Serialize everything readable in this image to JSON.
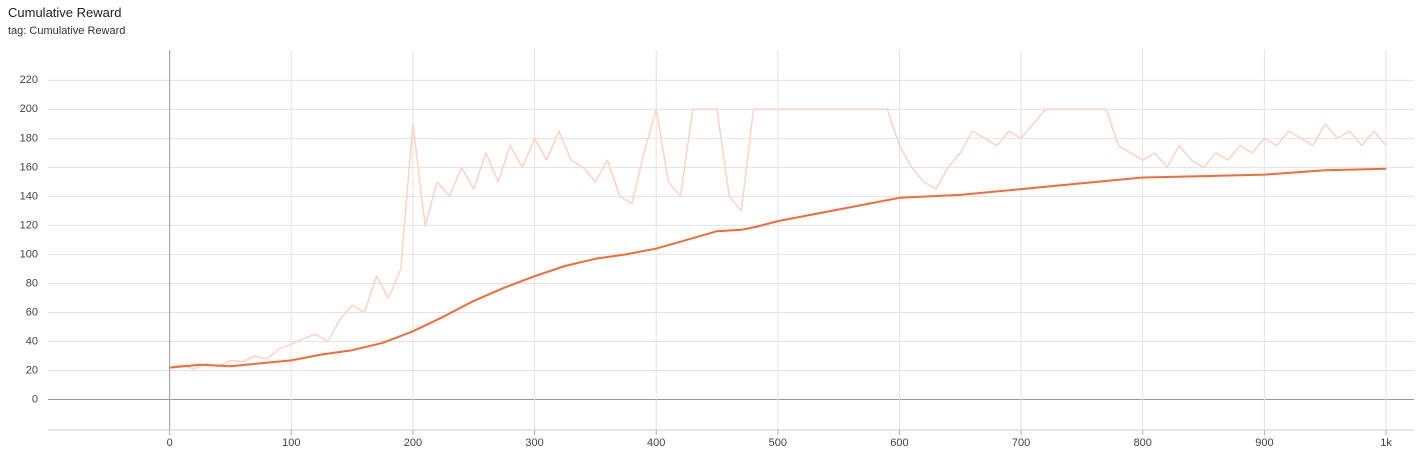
{
  "chart_data": {
    "type": "line",
    "title": "Cumulative Reward",
    "subtitle": "tag: Cumulative Reward",
    "xlim": [
      -100,
      1023
    ],
    "ylim": [
      -21,
      234
    ],
    "xticks": [
      0,
      100,
      200,
      300,
      400,
      500,
      600,
      700,
      800,
      900,
      {
        "value": 1000,
        "label": "1k"
      }
    ],
    "yticks": [
      0,
      20,
      40,
      60,
      80,
      100,
      120,
      140,
      160,
      180,
      200,
      220
    ],
    "grid": true,
    "series": [
      {
        "color": "#fbd3c4",
        "x": [
          0,
          10,
          20,
          30,
          40,
          50,
          60,
          70,
          80,
          90,
          100,
          110,
          120,
          130,
          140,
          150,
          160,
          170,
          180,
          190,
          200,
          210,
          220,
          230,
          240,
          250,
          260,
          270,
          280,
          290,
          300,
          310,
          320,
          330,
          340,
          350,
          360,
          370,
          380,
          390,
          400,
          410,
          420,
          430,
          440,
          450,
          460,
          470,
          480,
          490,
          500,
          510,
          520,
          530,
          540,
          550,
          560,
          570,
          580,
          590,
          600,
          610,
          620,
          630,
          640,
          650,
          660,
          670,
          680,
          690,
          700,
          710,
          720,
          730,
          740,
          750,
          760,
          770,
          780,
          790,
          800,
          810,
          820,
          830,
          840,
          850,
          860,
          870,
          880,
          890,
          900,
          910,
          920,
          930,
          940,
          950,
          960,
          970,
          980,
          990,
          1000
        ],
        "values": [
          22,
          24,
          21,
          25,
          23,
          27,
          26,
          30,
          28,
          35,
          38,
          42,
          45,
          40,
          55,
          65,
          60,
          85,
          70,
          90,
          190,
          120,
          150,
          140,
          160,
          145,
          170,
          150,
          175,
          160,
          180,
          165,
          185,
          165,
          160,
          150,
          165,
          140,
          135,
          170,
          200,
          150,
          140,
          200,
          200,
          200,
          140,
          130,
          200,
          200,
          200,
          200,
          200,
          200,
          200,
          200,
          200,
          200,
          200,
          200,
          175,
          160,
          150,
          145,
          160,
          170,
          185,
          180,
          175,
          185,
          180,
          190,
          200,
          200,
          200,
          200,
          200,
          200,
          175,
          170,
          165,
          170,
          160,
          175,
          165,
          160,
          170,
          165,
          175,
          170,
          180,
          175,
          185,
          180,
          175,
          190,
          180,
          185,
          175,
          185,
          175
        ]
      },
      {
        "color": "#f26b38",
        "x": [
          0,
          25,
          50,
          75,
          100,
          125,
          150,
          175,
          200,
          225,
          250,
          275,
          300,
          325,
          350,
          375,
          400,
          425,
          450,
          470,
          482,
          500,
          550,
          600,
          650,
          700,
          750,
          800,
          850,
          900,
          950,
          1000
        ],
        "values": [
          22,
          24,
          23,
          25,
          27,
          31,
          34,
          39,
          47,
          57,
          68,
          77,
          85,
          92,
          97,
          100,
          104,
          110,
          116,
          117,
          119,
          123,
          131,
          139,
          141,
          145,
          149,
          153,
          154,
          155,
          158,
          159
        ]
      }
    ]
  }
}
